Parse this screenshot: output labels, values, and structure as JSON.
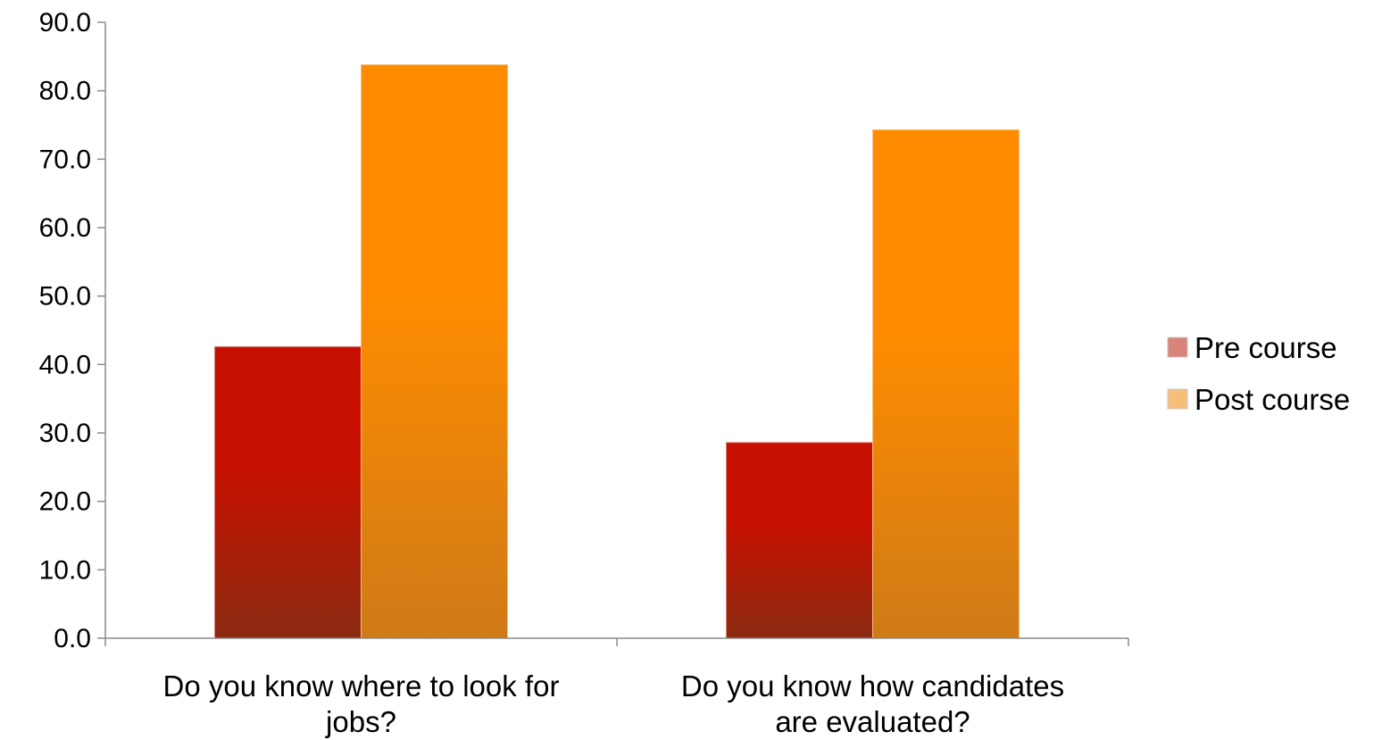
{
  "chart_data": {
    "type": "bar",
    "title": "",
    "xlabel": "",
    "ylabel": "",
    "ylim": [
      0,
      90
    ],
    "y_ticks": [
      "0.0",
      "10.0",
      "20.0",
      "30.0",
      "40.0",
      "50.0",
      "60.0",
      "70.0",
      "80.0",
      "90.0"
    ],
    "y_tick_values": [
      0,
      10,
      20,
      30,
      40,
      50,
      60,
      70,
      80,
      90
    ],
    "categories": [
      [
        "Do you know where to look for",
        "jobs?"
      ],
      [
        "Do you know how candidates",
        "are evaluated?"
      ]
    ],
    "series": [
      {
        "name": "Pre course",
        "values": [
          42.6,
          28.6
        ],
        "color": "#c81000",
        "color_dark": "#8a2a10",
        "legend_color": "#d9847a"
      },
      {
        "name": "Post course",
        "values": [
          83.8,
          74.3
        ],
        "color": "#ff8c00",
        "color_dark": "#cf7a18",
        "legend_color": "#f7be7a"
      }
    ],
    "grid": false,
    "legend_position": "right"
  }
}
